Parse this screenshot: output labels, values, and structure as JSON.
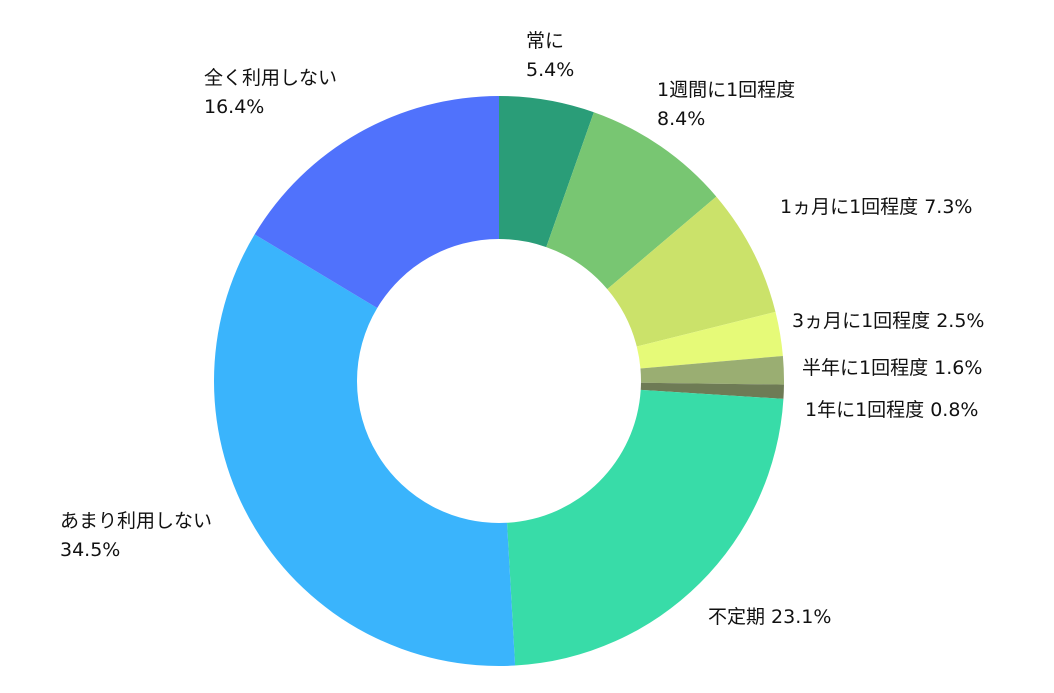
{
  "chart_data": {
    "type": "pie",
    "donut": true,
    "title": "",
    "unit": "%",
    "slices": [
      {
        "label": "常に",
        "value": 5.4,
        "value_text": "5.4%",
        "color": "#2a9d78",
        "layout": "stacked"
      },
      {
        "label": "1週間に1回程度",
        "value": 8.4,
        "value_text": "8.4%",
        "color": "#78c672",
        "layout": "stacked"
      },
      {
        "label": "1ヵ月に1回程度",
        "value": 7.3,
        "value_text": "7.3%",
        "color": "#cbe26a",
        "layout": "inline"
      },
      {
        "label": "3ヵ月に1回程度",
        "value": 2.5,
        "value_text": "2.5%",
        "color": "#e6fa78",
        "layout": "inline"
      },
      {
        "label": "半年に1回程度",
        "value": 1.6,
        "value_text": "1.6%",
        "color": "#9aae72",
        "layout": "inline"
      },
      {
        "label": "1年に1回程度",
        "value": 0.8,
        "value_text": "0.8%",
        "color": "#6e7b55",
        "layout": "inline"
      },
      {
        "label": "不定期",
        "value": 23.1,
        "value_text": "23.1%",
        "color": "#38dca8",
        "layout": "inline"
      },
      {
        "label": "あまり利用しない",
        "value": 34.5,
        "value_text": "34.5%",
        "color": "#3ab4fc",
        "layout": "stacked"
      },
      {
        "label": "全く利用しない",
        "value": 16.4,
        "value_text": "16.4%",
        "color": "#5072fc",
        "layout": "stacked"
      }
    ],
    "start": "top",
    "direction": "clockwise",
    "legend": "none"
  }
}
